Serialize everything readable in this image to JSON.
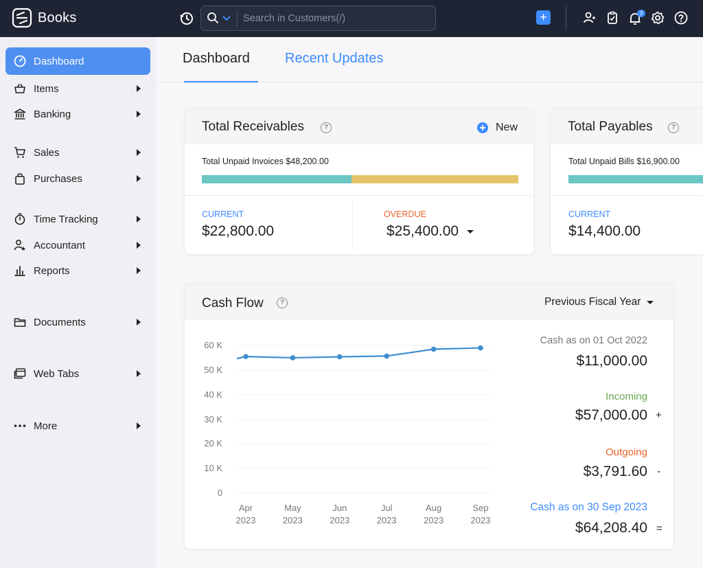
{
  "app": {
    "name": "Books"
  },
  "search": {
    "placeholder": "Search in Customers(/)"
  },
  "notifications": {
    "count": "3"
  },
  "sidebar": {
    "items": [
      {
        "label": "Dashboard",
        "icon": "dashboard-icon",
        "active": true
      },
      {
        "label": "Items",
        "icon": "basket-icon"
      },
      {
        "label": "Banking",
        "icon": "bank-icon"
      },
      {
        "label": "Sales",
        "icon": "cart-icon"
      },
      {
        "label": "Purchases",
        "icon": "bag-icon"
      },
      {
        "label": "Time Tracking",
        "icon": "stopwatch-icon"
      },
      {
        "label": "Accountant",
        "icon": "accountant-icon"
      },
      {
        "label": "Reports",
        "icon": "bar-chart-icon"
      },
      {
        "label": "Documents",
        "icon": "folder-icon"
      },
      {
        "label": "Web Tabs",
        "icon": "web-tabs-icon"
      },
      {
        "label": "More",
        "icon": "more-dots-icon"
      }
    ]
  },
  "tabs": {
    "dashboard": "Dashboard",
    "recent_updates": "Recent Updates"
  },
  "receivables": {
    "title": "Total Receivables",
    "new_label": "New",
    "unpaid_text": "Total Unpaid Invoices $48,200.00",
    "current_label": "CURRENT",
    "current_amount": "$22,800.00",
    "overdue_label": "OVERDUE",
    "overdue_amount": "$25,400.00",
    "current_fraction": 0.473
  },
  "payables": {
    "title": "Total Payables",
    "unpaid_text": "Total Unpaid Bills $16,900.00",
    "current_label": "CURRENT",
    "current_amount": "$14,400.00"
  },
  "cashflow": {
    "title": "Cash Flow",
    "period": "Previous Fiscal Year",
    "start_label": "Cash as on 01 Oct 2022",
    "start_amount": "$11,000.00",
    "incoming_label": "Incoming",
    "incoming_amount": "$57,000.00",
    "incoming_sign": "+",
    "outgoing_label": "Outgoing",
    "outgoing_amount": "$3,791.60",
    "outgoing_sign": "-",
    "end_label": "Cash as on 30 Sep 2023",
    "end_amount": "$64,208.40",
    "end_sign": "="
  },
  "colors": {
    "accent": "#3d8bfd",
    "current_bar": "#6cc7c4",
    "overdue_bar": "#e6c46a",
    "incoming": "#6aa84f",
    "outgoing": "#e8632b",
    "line": "#3f8fd0"
  },
  "chart_data": {
    "type": "line",
    "categories": [
      "Apr 2023",
      "May 2023",
      "Jun 2023",
      "Jul 2023",
      "Aug 2023",
      "Sep 2023"
    ],
    "x_tick_lines": [
      [
        "Apr",
        "2023"
      ],
      [
        "May",
        "2023"
      ],
      [
        "Jun",
        "2023"
      ],
      [
        "Jul",
        "2023"
      ],
      [
        "Aug",
        "2023"
      ],
      [
        "Sep",
        "2023"
      ]
    ],
    "series": [
      {
        "values": [
          55500,
          55000,
          55400,
          55700,
          58500,
          59000
        ]
      }
    ],
    "y_ticks": [
      "0",
      "10 K",
      "20 K",
      "30 K",
      "40 K",
      "50 K",
      "60 K"
    ],
    "ylim": [
      0,
      60000
    ],
    "grid": true
  }
}
